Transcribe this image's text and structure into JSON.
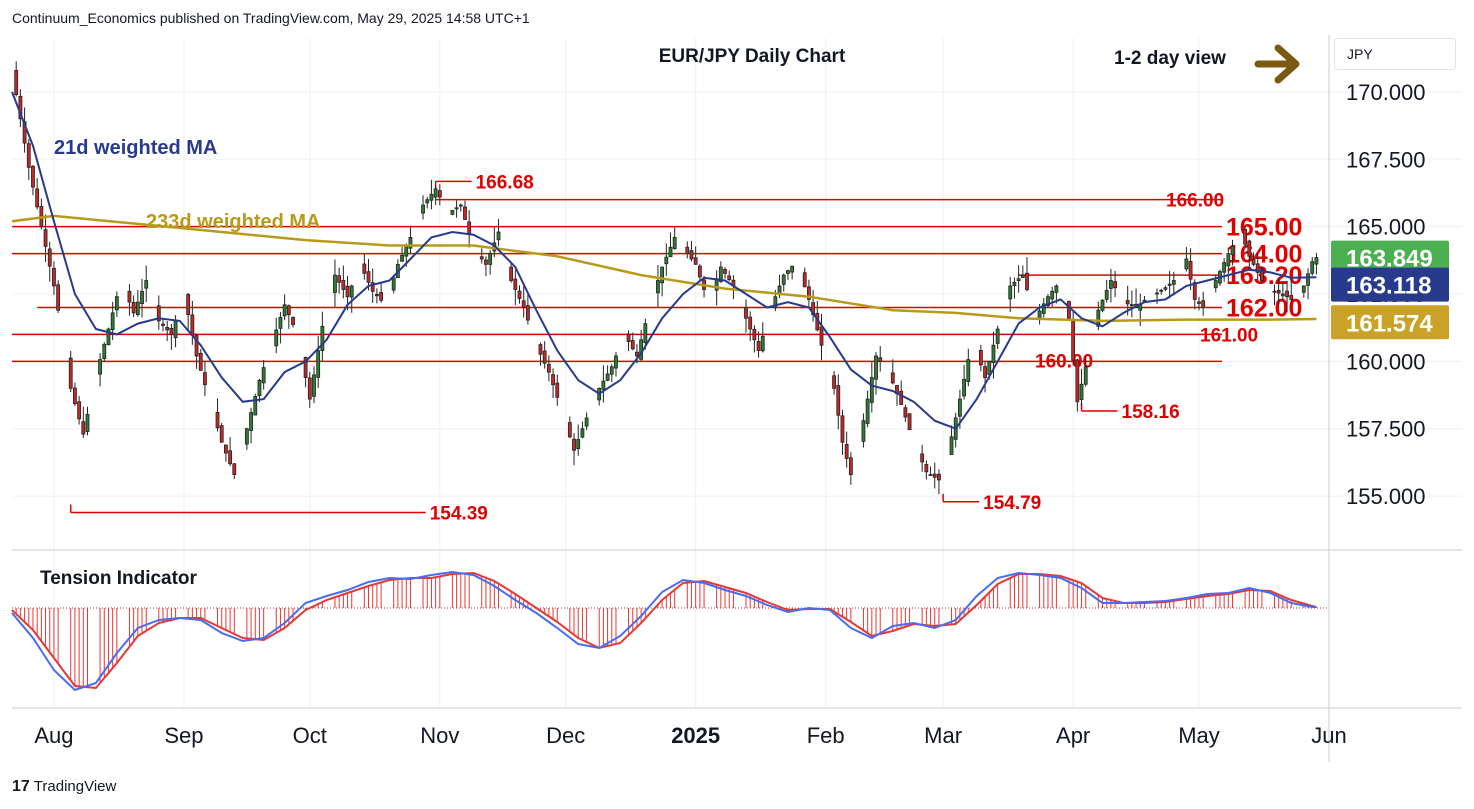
{
  "header": {
    "publisher_line": "Continuum_Economics published on TradingView.com, May 29, 2025 14:58 UTC+1",
    "currency": "JPY"
  },
  "footer": {
    "logo_mark": "17",
    "logo_text": "TradingView"
  },
  "colors": {
    "bull": "#2e7d32",
    "bear": "#c62828",
    "ma21": "#283a8c",
    "ma233": "#b89a1a",
    "level": "#e00000",
    "tension_line": "#4a6cf0",
    "tension_signal": "#e53935",
    "arrow": "#7a5a10",
    "grid": "#eef0f4",
    "axis": "#131722"
  },
  "chart_data": {
    "type": "candlestick",
    "title": "EUR/JPY Daily Chart",
    "view": "1-2 day view",
    "view_icon": "arrow-right-icon",
    "ylim": [
      153.0,
      172.0
    ],
    "y_ticks": [
      "170.000",
      "167.500",
      "165.000",
      "162.500",
      "160.000",
      "157.500",
      "155.000"
    ],
    "y_tick_values": [
      170.0,
      167.5,
      165.0,
      162.5,
      160.0,
      157.5,
      155.0
    ],
    "x_ticks": [
      "Aug",
      "Sep",
      "Oct",
      "Nov",
      "Dec",
      "2025",
      "Feb",
      "Mar",
      "Apr",
      "May",
      "Jun"
    ],
    "x_tick_days": [
      0,
      31,
      61,
      92,
      122,
      153,
      184,
      212,
      243,
      273,
      304
    ],
    "x_tick_bold": [
      false,
      false,
      false,
      false,
      false,
      true,
      false,
      false,
      false,
      false,
      false
    ],
    "x_range_days": [
      -10,
      304
    ],
    "series": [
      {
        "name": "21d weighted MA",
        "value_tag": "163.118"
      },
      {
        "name": "233d weighted MA",
        "value_tag": "161.574"
      }
    ],
    "last_price": "163.849",
    "levels": [
      {
        "label": "166.00",
        "value": 166.0,
        "from_day": 91
      },
      {
        "label": "165.00",
        "value": 165.0,
        "from_day": -10
      },
      {
        "label": "164.00",
        "value": 164.0,
        "from_day": -10
      },
      {
        "label": "163.20",
        "value": 163.2,
        "from_day": 230
      },
      {
        "label": "162.00",
        "value": 162.0,
        "from_day": -4
      },
      {
        "label": "161.00",
        "value": 161.0,
        "from_day": -10
      },
      {
        "label": "160.00",
        "value": 160.0,
        "from_day": -10
      }
    ],
    "annotations": [
      {
        "label": "166.68",
        "value": 166.68,
        "day": 91
      },
      {
        "label": "158.16",
        "value": 158.16,
        "day": 245
      },
      {
        "label": "154.79",
        "value": 154.79,
        "day": 212
      },
      {
        "label": "154.39",
        "value": 154.39,
        "day": 4
      }
    ],
    "trend_path": [
      [
        -10,
        170.8
      ],
      [
        -6,
        167.2
      ],
      [
        -3,
        165.0
      ],
      [
        0,
        162.8
      ],
      [
        2,
        161.0
      ],
      [
        4,
        159.0
      ],
      [
        7,
        157.3
      ],
      [
        10,
        159.5
      ],
      [
        13,
        161.2
      ],
      [
        16,
        163.0
      ],
      [
        19,
        161.8
      ],
      [
        22,
        163.0
      ],
      [
        25,
        161.5
      ],
      [
        28,
        161.0
      ],
      [
        31,
        162.5
      ],
      [
        34,
        160.2
      ],
      [
        37,
        158.6
      ],
      [
        40,
        157.0
      ],
      [
        43,
        155.8
      ],
      [
        46,
        157.5
      ],
      [
        49,
        159.3
      ],
      [
        52,
        160.7
      ],
      [
        55,
        162.1
      ],
      [
        58,
        161.0
      ],
      [
        61,
        158.6
      ],
      [
        64,
        161.3
      ],
      [
        67,
        163.2
      ],
      [
        70,
        162.4
      ],
      [
        73,
        163.6
      ],
      [
        76,
        162.6
      ],
      [
        79,
        162.1
      ],
      [
        82,
        163.6
      ],
      [
        85,
        164.6
      ],
      [
        88,
        165.8
      ],
      [
        91,
        166.4
      ],
      [
        94,
        165.5
      ],
      [
        97,
        165.8
      ],
      [
        100,
        164.2
      ],
      [
        103,
        163.6
      ],
      [
        106,
        164.8
      ],
      [
        109,
        163.0
      ],
      [
        112,
        162.0
      ],
      [
        115,
        160.6
      ],
      [
        118,
        159.6
      ],
      [
        121,
        158.2
      ],
      [
        124,
        156.7
      ],
      [
        127,
        157.9
      ],
      [
        130,
        159.0
      ],
      [
        133,
        159.8
      ],
      [
        136,
        161.0
      ],
      [
        139,
        160.2
      ],
      [
        142,
        162.0
      ],
      [
        145,
        163.5
      ],
      [
        148,
        164.6
      ],
      [
        151,
        164.0
      ],
      [
        153,
        163.6
      ],
      [
        156,
        162.2
      ],
      [
        159,
        163.5
      ],
      [
        162,
        162.8
      ],
      [
        165,
        161.6
      ],
      [
        168,
        160.4
      ],
      [
        171,
        162.0
      ],
      [
        174,
        163.2
      ],
      [
        177,
        163.7
      ],
      [
        180,
        162.3
      ],
      [
        183,
        160.6
      ],
      [
        186,
        159.0
      ],
      [
        188,
        157.0
      ],
      [
        190,
        155.8
      ],
      [
        193,
        157.8
      ],
      [
        196,
        160.2
      ],
      [
        199,
        159.6
      ],
      [
        202,
        158.4
      ],
      [
        205,
        157.0
      ],
      [
        208,
        155.9
      ],
      [
        211,
        155.6
      ],
      [
        213,
        156.5
      ],
      [
        216,
        158.6
      ],
      [
        219,
        160.8
      ],
      [
        222,
        159.4
      ],
      [
        225,
        161.2
      ],
      [
        228,
        162.8
      ],
      [
        231,
        163.2
      ],
      [
        234,
        161.6
      ],
      [
        237,
        162.4
      ],
      [
        240,
        163.0
      ],
      [
        242,
        161.6
      ],
      [
        244,
        158.5
      ],
      [
        246,
        159.8
      ],
      [
        249,
        161.9
      ],
      [
        252,
        163.0
      ],
      [
        255,
        162.2
      ],
      [
        258,
        162.0
      ],
      [
        261,
        162.4
      ],
      [
        264,
        162.6
      ],
      [
        267,
        163.0
      ],
      [
        270,
        163.8
      ],
      [
        272,
        162.3
      ],
      [
        274,
        162.0
      ],
      [
        277,
        163.0
      ],
      [
        280,
        164.0
      ],
      [
        283,
        164.8
      ],
      [
        285,
        163.9
      ],
      [
        288,
        163.0
      ],
      [
        290,
        162.6
      ],
      [
        293,
        162.5
      ],
      [
        296,
        162.2
      ],
      [
        298,
        162.8
      ],
      [
        300,
        163.7
      ],
      [
        301,
        163.85
      ]
    ],
    "ma21_path": [
      [
        -10,
        170.0
      ],
      [
        -5,
        168.0
      ],
      [
        0,
        165.2
      ],
      [
        5,
        162.5
      ],
      [
        10,
        161.2
      ],
      [
        15,
        161.0
      ],
      [
        20,
        161.4
      ],
      [
        25,
        161.6
      ],
      [
        30,
        161.5
      ],
      [
        35,
        160.6
      ],
      [
        40,
        159.4
      ],
      [
        45,
        158.5
      ],
      [
        50,
        158.6
      ],
      [
        55,
        159.6
      ],
      [
        60,
        160.0
      ],
      [
        65,
        160.8
      ],
      [
        70,
        162.1
      ],
      [
        75,
        162.8
      ],
      [
        80,
        163.0
      ],
      [
        85,
        163.8
      ],
      [
        90,
        164.6
      ],
      [
        95,
        164.8
      ],
      [
        100,
        164.7
      ],
      [
        105,
        164.3
      ],
      [
        110,
        163.5
      ],
      [
        115,
        161.9
      ],
      [
        120,
        160.4
      ],
      [
        125,
        159.3
      ],
      [
        130,
        158.8
      ],
      [
        135,
        159.3
      ],
      [
        140,
        160.3
      ],
      [
        145,
        161.6
      ],
      [
        150,
        162.5
      ],
      [
        155,
        163.1
      ],
      [
        160,
        163.0
      ],
      [
        165,
        162.5
      ],
      [
        170,
        162.0
      ],
      [
        175,
        162.2
      ],
      [
        180,
        162.0
      ],
      [
        185,
        160.9
      ],
      [
        190,
        159.7
      ],
      [
        195,
        159.1
      ],
      [
        200,
        158.9
      ],
      [
        205,
        158.5
      ],
      [
        210,
        157.8
      ],
      [
        215,
        157.5
      ],
      [
        220,
        158.6
      ],
      [
        225,
        160.0
      ],
      [
        230,
        161.4
      ],
      [
        235,
        162.0
      ],
      [
        240,
        162.3
      ],
      [
        245,
        161.6
      ],
      [
        250,
        161.3
      ],
      [
        255,
        161.8
      ],
      [
        260,
        162.2
      ],
      [
        265,
        162.3
      ],
      [
        270,
        162.8
      ],
      [
        275,
        163.0
      ],
      [
        280,
        163.2
      ],
      [
        285,
        163.4
      ],
      [
        290,
        163.3
      ],
      [
        295,
        163.1
      ],
      [
        301,
        163.118
      ]
    ],
    "ma233_path": [
      [
        -10,
        165.2
      ],
      [
        0,
        165.4
      ],
      [
        20,
        165.1
      ],
      [
        40,
        164.8
      ],
      [
        60,
        164.5
      ],
      [
        80,
        164.3
      ],
      [
        100,
        164.3
      ],
      [
        120,
        163.9
      ],
      [
        140,
        163.2
      ],
      [
        160,
        162.7
      ],
      [
        180,
        162.4
      ],
      [
        200,
        161.9
      ],
      [
        215,
        161.8
      ],
      [
        230,
        161.6
      ],
      [
        250,
        161.5
      ],
      [
        270,
        161.55
      ],
      [
        290,
        161.55
      ],
      [
        301,
        161.574
      ]
    ],
    "tension_indicator": {
      "label": "Tension Indicator",
      "ylim": [
        -1.0,
        0.5
      ],
      "line_path": [
        [
          -10,
          -0.05
        ],
        [
          -5,
          -0.3
        ],
        [
          0,
          -0.62
        ],
        [
          5,
          -0.82
        ],
        [
          10,
          -0.75
        ],
        [
          15,
          -0.45
        ],
        [
          20,
          -0.2
        ],
        [
          25,
          -0.12
        ],
        [
          30,
          -0.1
        ],
        [
          35,
          -0.12
        ],
        [
          40,
          -0.25
        ],
        [
          45,
          -0.33
        ],
        [
          50,
          -0.3
        ],
        [
          55,
          -0.15
        ],
        [
          60,
          0.05
        ],
        [
          65,
          0.12
        ],
        [
          70,
          0.18
        ],
        [
          75,
          0.26
        ],
        [
          80,
          0.3
        ],
        [
          85,
          0.29
        ],
        [
          90,
          0.33
        ],
        [
          95,
          0.36
        ],
        [
          100,
          0.33
        ],
        [
          105,
          0.22
        ],
        [
          110,
          0.08
        ],
        [
          115,
          -0.05
        ],
        [
          120,
          -0.2
        ],
        [
          125,
          -0.36
        ],
        [
          130,
          -0.4
        ],
        [
          135,
          -0.28
        ],
        [
          140,
          -0.08
        ],
        [
          145,
          0.16
        ],
        [
          150,
          0.28
        ],
        [
          155,
          0.25
        ],
        [
          160,
          0.18
        ],
        [
          165,
          0.12
        ],
        [
          170,
          0.03
        ],
        [
          175,
          -0.04
        ],
        [
          180,
          0.0
        ],
        [
          185,
          -0.02
        ],
        [
          190,
          -0.2
        ],
        [
          195,
          -0.3
        ],
        [
          200,
          -0.18
        ],
        [
          205,
          -0.15
        ],
        [
          210,
          -0.2
        ],
        [
          215,
          -0.12
        ],
        [
          220,
          0.12
        ],
        [
          225,
          0.3
        ],
        [
          230,
          0.35
        ],
        [
          235,
          0.33
        ],
        [
          240,
          0.3
        ],
        [
          245,
          0.2
        ],
        [
          250,
          0.05
        ],
        [
          255,
          0.05
        ],
        [
          260,
          0.06
        ],
        [
          265,
          0.07
        ],
        [
          270,
          0.1
        ],
        [
          275,
          0.14
        ],
        [
          280,
          0.15
        ],
        [
          285,
          0.2
        ],
        [
          290,
          0.15
        ],
        [
          295,
          0.05
        ],
        [
          300,
          0.01
        ],
        [
          301,
          0.01
        ]
      ],
      "signal_path": [
        [
          -10,
          -0.02
        ],
        [
          -5,
          -0.22
        ],
        [
          0,
          -0.5
        ],
        [
          5,
          -0.78
        ],
        [
          10,
          -0.8
        ],
        [
          15,
          -0.55
        ],
        [
          20,
          -0.28
        ],
        [
          25,
          -0.15
        ],
        [
          30,
          -0.1
        ],
        [
          35,
          -0.1
        ],
        [
          40,
          -0.2
        ],
        [
          45,
          -0.3
        ],
        [
          50,
          -0.32
        ],
        [
          55,
          -0.2
        ],
        [
          60,
          -0.02
        ],
        [
          65,
          0.08
        ],
        [
          70,
          0.15
        ],
        [
          75,
          0.22
        ],
        [
          80,
          0.28
        ],
        [
          85,
          0.3
        ],
        [
          90,
          0.3
        ],
        [
          95,
          0.34
        ],
        [
          100,
          0.35
        ],
        [
          105,
          0.27
        ],
        [
          110,
          0.14
        ],
        [
          115,
          0.0
        ],
        [
          120,
          -0.14
        ],
        [
          125,
          -0.3
        ],
        [
          130,
          -0.4
        ],
        [
          135,
          -0.35
        ],
        [
          140,
          -0.15
        ],
        [
          145,
          0.08
        ],
        [
          150,
          0.25
        ],
        [
          155,
          0.27
        ],
        [
          160,
          0.21
        ],
        [
          165,
          0.15
        ],
        [
          170,
          0.06
        ],
        [
          175,
          -0.02
        ],
        [
          180,
          -0.01
        ],
        [
          185,
          -0.01
        ],
        [
          190,
          -0.14
        ],
        [
          195,
          -0.28
        ],
        [
          200,
          -0.23
        ],
        [
          205,
          -0.16
        ],
        [
          210,
          -0.18
        ],
        [
          215,
          -0.16
        ],
        [
          220,
          0.03
        ],
        [
          225,
          0.24
        ],
        [
          230,
          0.34
        ],
        [
          235,
          0.34
        ],
        [
          240,
          0.32
        ],
        [
          245,
          0.25
        ],
        [
          250,
          0.1
        ],
        [
          255,
          0.05
        ],
        [
          260,
          0.05
        ],
        [
          265,
          0.06
        ],
        [
          270,
          0.09
        ],
        [
          275,
          0.12
        ],
        [
          280,
          0.14
        ],
        [
          285,
          0.18
        ],
        [
          290,
          0.17
        ],
        [
          295,
          0.08
        ],
        [
          300,
          0.02
        ],
        [
          301,
          0.01
        ]
      ]
    }
  }
}
